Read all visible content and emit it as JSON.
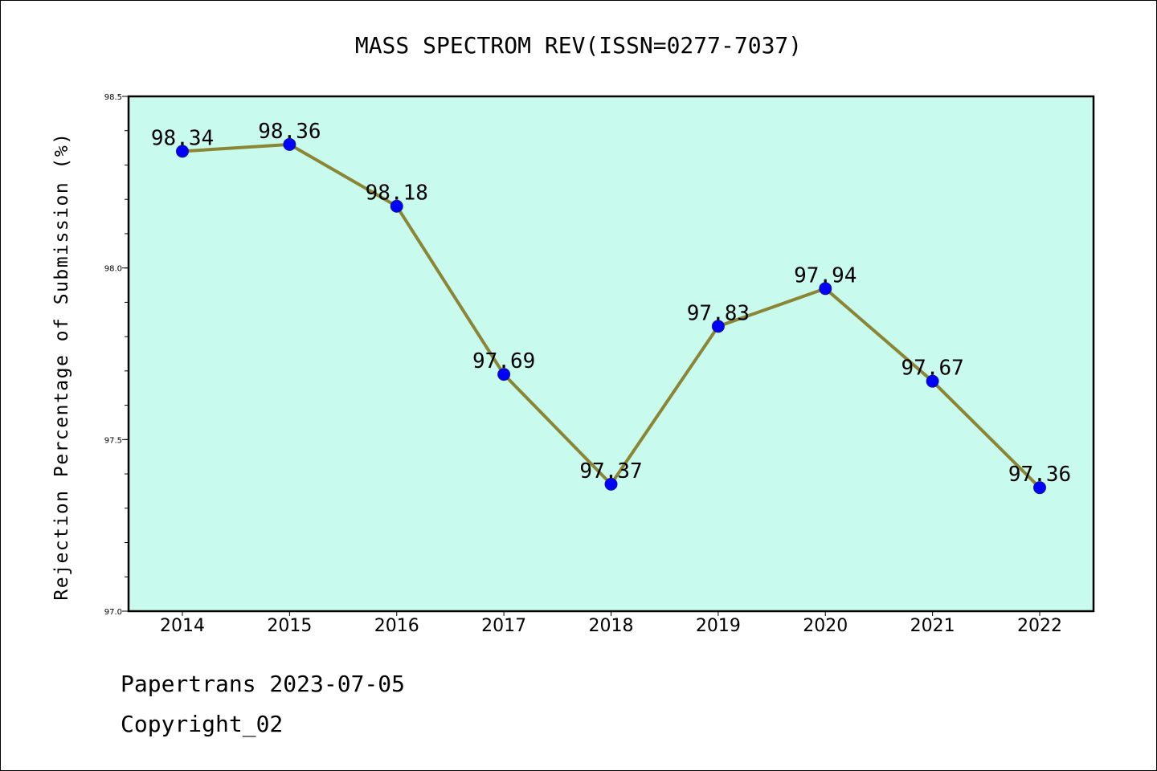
{
  "chart_data": {
    "type": "line",
    "title": "MASS SPECTROM REV(ISSN=0277-7037)",
    "xlabel": "",
    "ylabel": "Rejection Percentage of Submission (%)",
    "categories": [
      "2014",
      "2015",
      "2016",
      "2017",
      "2018",
      "2019",
      "2020",
      "2021",
      "2022"
    ],
    "series": [
      {
        "values": [
          98.34,
          98.36,
          98.18,
          97.69,
          97.37,
          97.83,
          97.94,
          97.67,
          97.36
        ],
        "labels": [
          "98.34",
          "98.36",
          "98.18",
          "97.69",
          "97.37",
          "97.83",
          "97.94",
          "97.67",
          "97.36"
        ]
      }
    ],
    "ylim": [
      97.0,
      98.5
    ],
    "yticks": [
      97.0,
      97.5,
      98.0,
      98.5
    ],
    "ytick_labels": [
      "97.0",
      "97.5",
      "98.0",
      "98.5"
    ],
    "grid": false,
    "colors": {
      "plot_background": "#c8fbee",
      "line": "#8b8536",
      "marker": "#0000ff",
      "marker_edge": "#1a1a8a",
      "axes": "#000000"
    }
  },
  "footer": {
    "line1": "Papertrans 2023-07-05",
    "line2": "Copyright_02"
  }
}
